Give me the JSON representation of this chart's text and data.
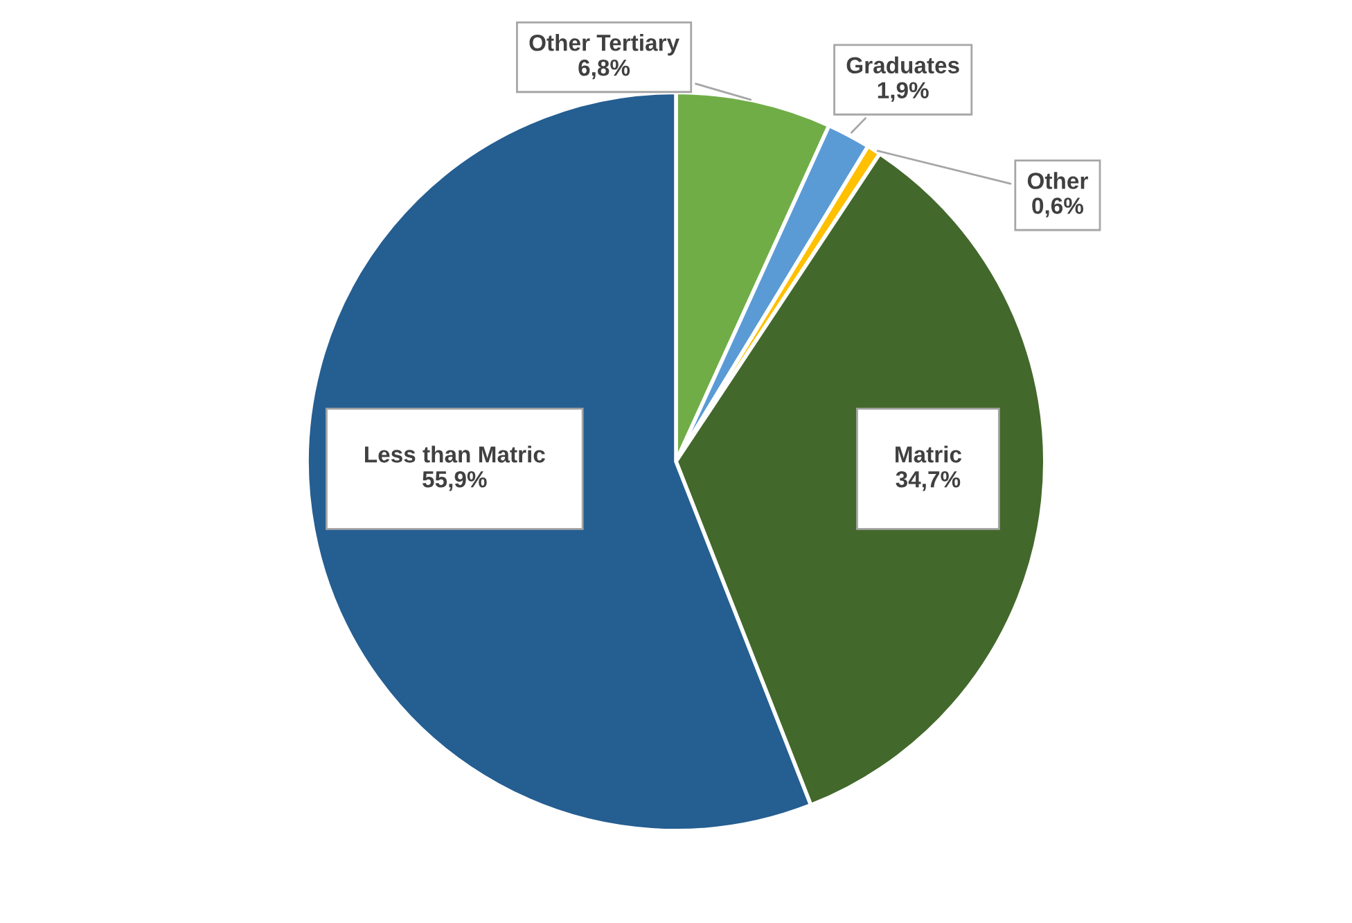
{
  "chart_data": {
    "type": "pie",
    "categories": [
      "Other Tertiary",
      "Graduates",
      "Other",
      "Matric",
      "Less than Matric"
    ],
    "values": [
      6.8,
      1.9,
      0.6,
      34.7,
      55.9
    ],
    "value_labels": [
      "6,8%",
      "1,9%",
      "0,6%",
      "34,7%",
      "55,9%"
    ],
    "colors": [
      "#70ad47",
      "#5b9bd5",
      "#ffc000",
      "#43682b",
      "#255e91"
    ],
    "legend": false
  }
}
